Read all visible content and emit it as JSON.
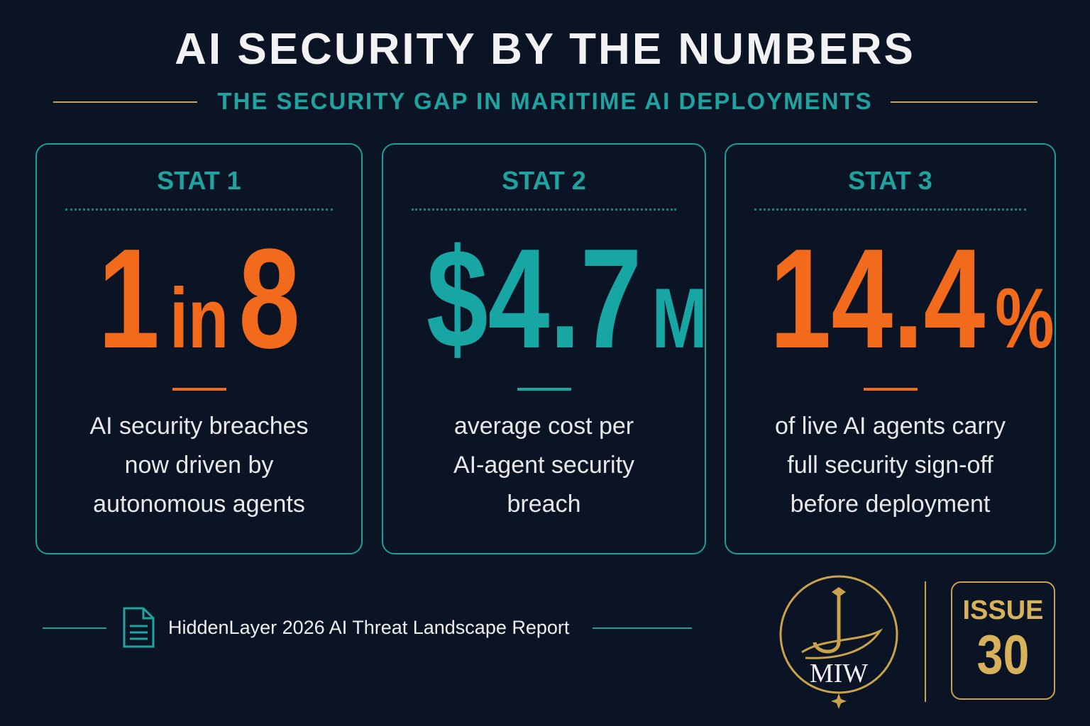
{
  "header": {
    "title": "AI SECURITY BY THE NUMBERS",
    "subtitle": "THE SECURITY GAP IN MARITIME AI DEPLOYMENTS"
  },
  "stats": [
    {
      "label": "STAT 1",
      "value_parts": [
        "1",
        "in",
        "8"
      ],
      "accent": "#f26a1b",
      "description": [
        "AI security breaches",
        "now driven by",
        "autonomous agents"
      ]
    },
    {
      "label": "STAT 2",
      "value_parts": [
        "$4.7",
        "M"
      ],
      "accent": "#17a6a3",
      "description": [
        "average cost per",
        "AI-agent security",
        "breach"
      ]
    },
    {
      "label": "STAT 3",
      "value_parts": [
        "14.4",
        "%"
      ],
      "accent": "#f26a1b",
      "description": [
        "of live AI agents carry",
        "full security sign-off",
        "before deployment"
      ]
    }
  ],
  "footer": {
    "source": "HiddenLayer 2026 AI Threat Landscape Report",
    "logo": "MIW",
    "issue_label": "ISSUE",
    "issue_number": "30"
  }
}
